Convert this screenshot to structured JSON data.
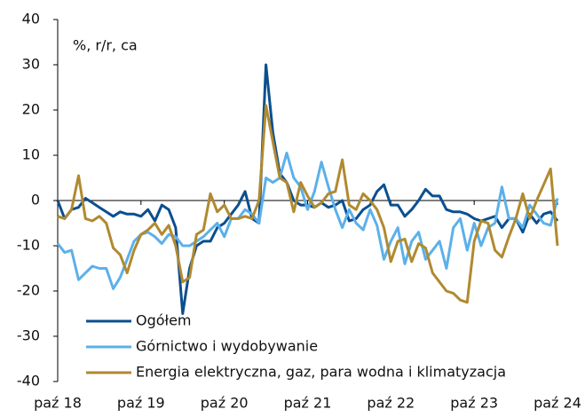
{
  "chart_data": {
    "type": "line",
    "y_axis_label": "%, r/r, ca",
    "categories": [
      "paź 18",
      null,
      null,
      null,
      null,
      null,
      null,
      null,
      null,
      null,
      null,
      null,
      "paź 19",
      null,
      null,
      null,
      null,
      null,
      null,
      null,
      null,
      null,
      null,
      null,
      "paź 20",
      null,
      null,
      null,
      null,
      null,
      null,
      null,
      null,
      null,
      null,
      null,
      "paź 21",
      null,
      null,
      null,
      null,
      null,
      null,
      null,
      null,
      null,
      null,
      null,
      "paź 22",
      null,
      null,
      null,
      null,
      null,
      null,
      null,
      null,
      null,
      null,
      null,
      "paź 23",
      null,
      null,
      null,
      null,
      null,
      null,
      null,
      null,
      null,
      null,
      null,
      "paź 24"
    ],
    "series": [
      {
        "name": "Ogółem",
        "color": "#0b4f8f",
        "values": [
          0,
          -4,
          -2,
          -1.5,
          0.5,
          -0.5,
          -1.5,
          -2.5,
          -3.5,
          -2.5,
          -3,
          -3,
          -3.5,
          -2,
          -4.5,
          -1,
          -2,
          -6,
          -25,
          -15,
          -10,
          -9,
          -9,
          -6,
          -5,
          -3,
          -1,
          2,
          -4,
          -5,
          30,
          15,
          6,
          4,
          0,
          -1,
          -1,
          -1.5,
          -0.5,
          -1.5,
          -1,
          0,
          -4.5,
          -4,
          -2,
          -1,
          2,
          3.5,
          -1,
          -1,
          -3.5,
          -2,
          0,
          2.5,
          1,
          1,
          -2,
          -2.5,
          -2.5,
          -3,
          -4,
          -4.5,
          -4,
          -3.5,
          -6,
          -4,
          -4,
          -7,
          -3,
          -5,
          -3,
          -2.5,
          -4.5
        ]
      },
      {
        "name": "Górnictwo i wydobywanie",
        "color": "#5cb0ea",
        "values": [
          -9.5,
          -11.5,
          -11,
          -17.5,
          -16,
          -14.5,
          -15,
          -15,
          -19.5,
          -17,
          -13,
          -9,
          -7.5,
          -7,
          -8,
          -9.5,
          -7.5,
          -8,
          -10,
          -10,
          -9,
          -8,
          -6.5,
          -5,
          -8,
          -4,
          -4,
          -2,
          -3,
          -5,
          5,
          4,
          5,
          10.5,
          5,
          3,
          -2,
          2,
          8.5,
          3,
          -2,
          -6,
          -2,
          -5,
          -6.5,
          -2,
          -5.5,
          -13,
          -9,
          -6,
          -14,
          -9,
          -7,
          -13,
          -11,
          -9,
          -15,
          -6,
          -4,
          -11,
          -5,
          -10,
          -6,
          -5,
          3,
          -4,
          -4,
          -6,
          -1,
          -3,
          -5,
          -5.5,
          0.5
        ]
      },
      {
        "name": "Energia elektryczna, gaz, para wodna i klimatyzacja",
        "color": "#b08a30",
        "values": [
          -3.5,
          -4,
          -2,
          5.5,
          -4,
          -4.5,
          -3.5,
          -5,
          -10.5,
          -12,
          -16,
          -11,
          -7.5,
          -6.5,
          -5,
          -7.5,
          -5.5,
          -10,
          -18,
          -17,
          -7.5,
          -6.5,
          1.5,
          -2.5,
          -1,
          -4,
          -4,
          -3.5,
          -4,
          0,
          21,
          13,
          5,
          4,
          -2.5,
          4,
          1,
          -1.5,
          -0.5,
          1.5,
          2,
          9,
          -1,
          -2,
          1.5,
          0,
          -2,
          -6,
          -13.5,
          -9,
          -8.5,
          -13.5,
          -9.5,
          -10.5,
          -16,
          -18,
          -20,
          -20.5,
          -22,
          -22.5,
          -9,
          -4.5,
          -5,
          -11,
          -12.5,
          -8,
          -4,
          1.5,
          -4,
          0,
          3.5,
          7,
          -10
        ]
      }
    ],
    "ylim": [
      -40,
      40
    ],
    "yticks": [
      -40,
      -30,
      -20,
      -10,
      0,
      10,
      20,
      30,
      40
    ],
    "legend": "lower left"
  }
}
